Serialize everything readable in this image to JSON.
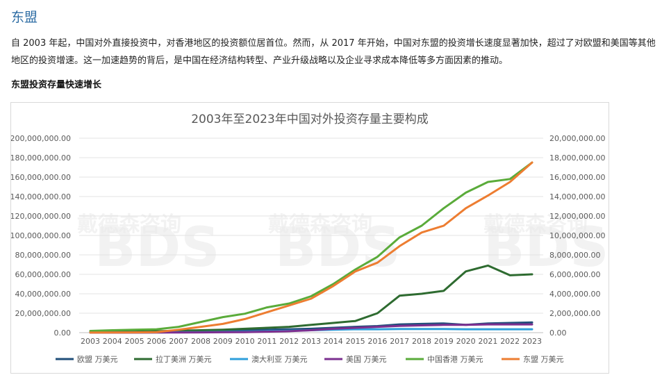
{
  "section": {
    "title": "东盟"
  },
  "paragraph": "自 2003 年起，中国对外直接投资中，对香港地区的投资额位居首位。然而，从 2017 年开始，中国对东盟的投资增长速度显著加快，超过了对欧盟和美国等其他地区的投资增速。这一加速趋势的背后，是中国在经济结构转型、产业升级战略以及企业寻求成本降低等多方面因素的推动。",
  "subheading": "东盟投资存量快速增长",
  "watermark": {
    "brand": "BDS",
    "text": "戴德森咨询"
  },
  "chart_data": {
    "type": "line",
    "title": "2003年至2023年中国对外投资存量主要构成",
    "categories": [
      "2003",
      "2004",
      "2005",
      "2006",
      "2007",
      "2008",
      "2009",
      "2010",
      "2011",
      "2012",
      "2013",
      "2014",
      "2015",
      "2016",
      "2017",
      "2018",
      "2019",
      "2020",
      "2021",
      "2022",
      "2023"
    ],
    "y_left": {
      "min": 0,
      "max": 200000000,
      "step": 20000000
    },
    "y_right": {
      "min": 0,
      "max": 20000000,
      "step": 2000000
    },
    "grid": true,
    "legend_position": "bottom",
    "series": [
      {
        "name": "欧盟 万美元",
        "color": "#1f4e79",
        "axis": "left",
        "values": [
          100000,
          200000,
          300000,
          400000,
          800000,
          1500000,
          2000000,
          2500000,
          3000000,
          3500000,
          4000000,
          5000000,
          6000000,
          6800000,
          8500000,
          9000000,
          9500000,
          8000000,
          9500000,
          10000000,
          10500000
        ]
      },
      {
        "name": "拉丁美洲 万美元",
        "color": "#2e6b30",
        "axis": "left",
        "values": [
          500000,
          800000,
          1000000,
          1500000,
          2000000,
          2500000,
          3000000,
          4000000,
          5000000,
          6000000,
          8000000,
          10000000,
          12000000,
          20000000,
          38000000,
          40000000,
          43000000,
          63000000,
          69000000,
          59000000,
          60000000
        ]
      },
      {
        "name": "澳大利亚 万美元",
        "color": "#2e9fdb",
        "axis": "left",
        "values": [
          50000,
          80000,
          100000,
          200000,
          400000,
          600000,
          800000,
          1000000,
          1500000,
          2000000,
          2500000,
          3000000,
          3500000,
          3500000,
          3800000,
          3800000,
          3800000,
          3500000,
          3500000,
          3500000,
          3500000
        ]
      },
      {
        "name": "美国 万美元",
        "color": "#7b2f8f",
        "axis": "left",
        "values": [
          50000,
          80000,
          100000,
          150000,
          200000,
          300000,
          400000,
          600000,
          1000000,
          1500000,
          2500000,
          4000000,
          5000000,
          6000000,
          7000000,
          7500000,
          8000000,
          8000000,
          8500000,
          8500000,
          8500000
        ]
      },
      {
        "name": "中国香港 万美元",
        "color": "#5aab3a",
        "axis": "left",
        "values": [
          1800000,
          2500000,
          3000000,
          3500000,
          6000000,
          11000000,
          16000000,
          19500000,
          26000000,
          30000000,
          37500000,
          50000000,
          65000000,
          78000000,
          98000000,
          110000000,
          128000000,
          144000000,
          155000000,
          158000000,
          175000000
        ]
      },
      {
        "name": "东盟 万美元",
        "color": "#ed7d31",
        "axis": "right",
        "values": [
          10000,
          20000,
          30000,
          50000,
          300000,
          600000,
          900000,
          1400000,
          2100000,
          2800000,
          3500000,
          4800000,
          6300000,
          7200000,
          8900000,
          10300000,
          11000000,
          12800000,
          14100000,
          15500000,
          17500000
        ]
      }
    ]
  }
}
